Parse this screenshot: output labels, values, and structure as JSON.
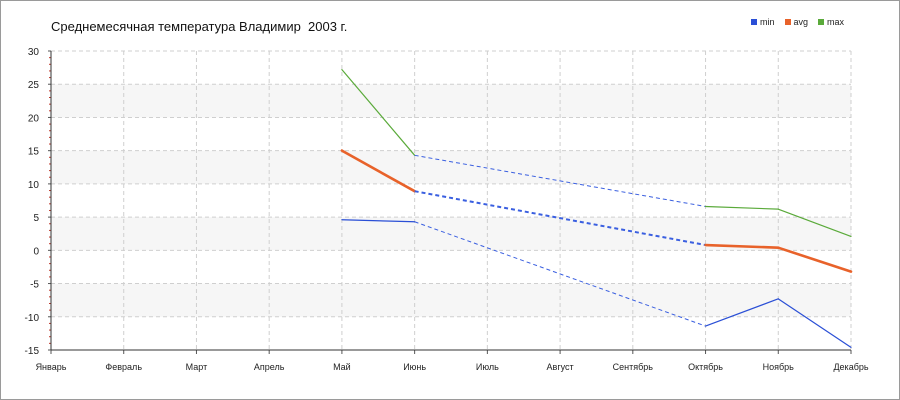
{
  "chart_data": {
    "type": "line",
    "title": "Среднемесячная температура Владимир  2003 г.",
    "categories": [
      "Январь",
      "Февраль",
      "Март",
      "Апрель",
      "Май",
      "Июнь",
      "Июль",
      "Август",
      "Сентябрь",
      "Октябрь",
      "Ноябрь",
      "Декабрь"
    ],
    "ylim": [
      -15,
      30
    ],
    "yticks": [
      -15,
      -10,
      -5,
      0,
      5,
      10,
      15,
      20,
      25,
      30
    ],
    "grid": true,
    "legend_position": "top-right",
    "series": [
      {
        "name": "min",
        "color": "#2a4fd6",
        "values": [
          null,
          null,
          null,
          null,
          4.6,
          4.3,
          null,
          null,
          null,
          -11.4,
          -7.3,
          -14.6
        ]
      },
      {
        "name": "avg",
        "color": "#e8622a",
        "values": [
          null,
          null,
          null,
          null,
          15.0,
          8.9,
          null,
          null,
          null,
          0.8,
          0.4,
          -3.2
        ]
      },
      {
        "name": "max",
        "color": "#5aaa3a",
        "values": [
          null,
          null,
          null,
          null,
          27.2,
          14.3,
          null,
          null,
          null,
          6.6,
          6.2,
          2.1
        ]
      }
    ]
  }
}
